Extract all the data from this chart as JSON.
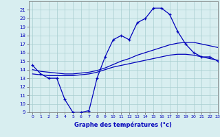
{
  "bg_color": "#d8eef0",
  "plot_bg_color": "#d8eef0",
  "grid_color": "#a8cdd0",
  "line_color": "#0000bb",
  "xlabel": "Graphe des températures (°c)",
  "ylim": [
    9,
    22
  ],
  "xlim": [
    -0.5,
    23
  ],
  "yticks": [
    9,
    10,
    11,
    12,
    13,
    14,
    15,
    16,
    17,
    18,
    19,
    20,
    21
  ],
  "xticks": [
    0,
    1,
    2,
    3,
    4,
    5,
    6,
    7,
    8,
    9,
    10,
    11,
    12,
    13,
    14,
    15,
    16,
    17,
    18,
    19,
    20,
    21,
    22,
    23
  ],
  "curve1_x": [
    0,
    1,
    2,
    3,
    4,
    5,
    6,
    7,
    8,
    9,
    10,
    11,
    12,
    13,
    14,
    15,
    16,
    17,
    18,
    19,
    20,
    21,
    22,
    23
  ],
  "curve1_y": [
    14.5,
    13.5,
    13.0,
    13.0,
    10.5,
    9.0,
    9.0,
    9.2,
    13.0,
    15.5,
    17.5,
    18.0,
    17.5,
    19.5,
    20.0,
    21.2,
    21.2,
    20.5,
    18.5,
    17.0,
    16.0,
    15.5,
    15.5,
    15.0
  ],
  "curve2_x": [
    0,
    1,
    2,
    3,
    4,
    5,
    6,
    7,
    8,
    9,
    10,
    11,
    12,
    13,
    14,
    15,
    16,
    17,
    18,
    19,
    20,
    21,
    22,
    23
  ],
  "curve2_y": [
    13.5,
    13.4,
    13.3,
    13.3,
    13.3,
    13.3,
    13.4,
    13.5,
    13.7,
    14.0,
    14.3,
    14.5,
    14.7,
    14.9,
    15.1,
    15.3,
    15.5,
    15.7,
    15.8,
    15.8,
    15.7,
    15.5,
    15.3,
    15.1
  ],
  "curve3_x": [
    0,
    1,
    2,
    3,
    4,
    5,
    6,
    7,
    8,
    9,
    10,
    11,
    12,
    13,
    14,
    15,
    16,
    17,
    18,
    19,
    20,
    21,
    22,
    23
  ],
  "curve3_y": [
    14.0,
    13.8,
    13.7,
    13.6,
    13.5,
    13.5,
    13.6,
    13.7,
    13.9,
    14.2,
    14.6,
    15.0,
    15.3,
    15.7,
    16.0,
    16.3,
    16.6,
    16.9,
    17.1,
    17.2,
    17.2,
    17.0,
    16.8,
    16.6
  ]
}
